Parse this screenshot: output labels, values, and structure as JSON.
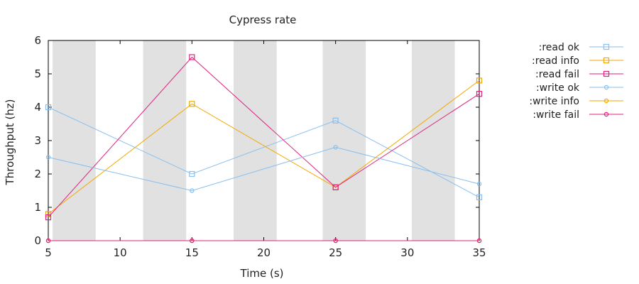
{
  "chart_data": {
    "type": "line",
    "title": "Cypress rate",
    "xlabel": "Time (s)",
    "ylabel": "Throughput (hz)",
    "xlim": [
      5,
      35
    ],
    "ylim": [
      0,
      6
    ],
    "xticks": [
      5,
      10,
      15,
      20,
      25,
      30,
      35
    ],
    "yticks": [
      0,
      1,
      2,
      3,
      4,
      5,
      6
    ],
    "shaded_bands": [
      [
        5.3,
        8.3
      ],
      [
        11.6,
        14.6
      ],
      [
        17.9,
        20.9
      ],
      [
        24.1,
        27.1
      ],
      [
        30.3,
        33.3
      ]
    ],
    "grid": false,
    "legend_position": "outside-right",
    "x": [
      5,
      15,
      25,
      35
    ],
    "series": [
      {
        "name": ":read ok",
        "color": "#87bff0",
        "marker": "square",
        "values": [
          4.0,
          2.0,
          3.6,
          1.3
        ]
      },
      {
        "name": ":read info",
        "color": "#f2a900",
        "marker": "square",
        "values": [
          0.8,
          4.1,
          1.6,
          4.8
        ]
      },
      {
        "name": ":read fail",
        "color": "#e0207f",
        "marker": "square",
        "values": [
          0.7,
          5.5,
          1.6,
          4.4
        ]
      },
      {
        "name": ":write ok",
        "color": "#87bff0",
        "marker": "circle",
        "values": [
          2.5,
          1.5,
          2.8,
          1.7
        ]
      },
      {
        "name": ":write info",
        "color": "#f2a900",
        "marker": "circle",
        "values": [
          0,
          0,
          0,
          0
        ]
      },
      {
        "name": ":write fail",
        "color": "#e0207f",
        "marker": "circle",
        "values": [
          0,
          0,
          0,
          0
        ]
      }
    ]
  }
}
